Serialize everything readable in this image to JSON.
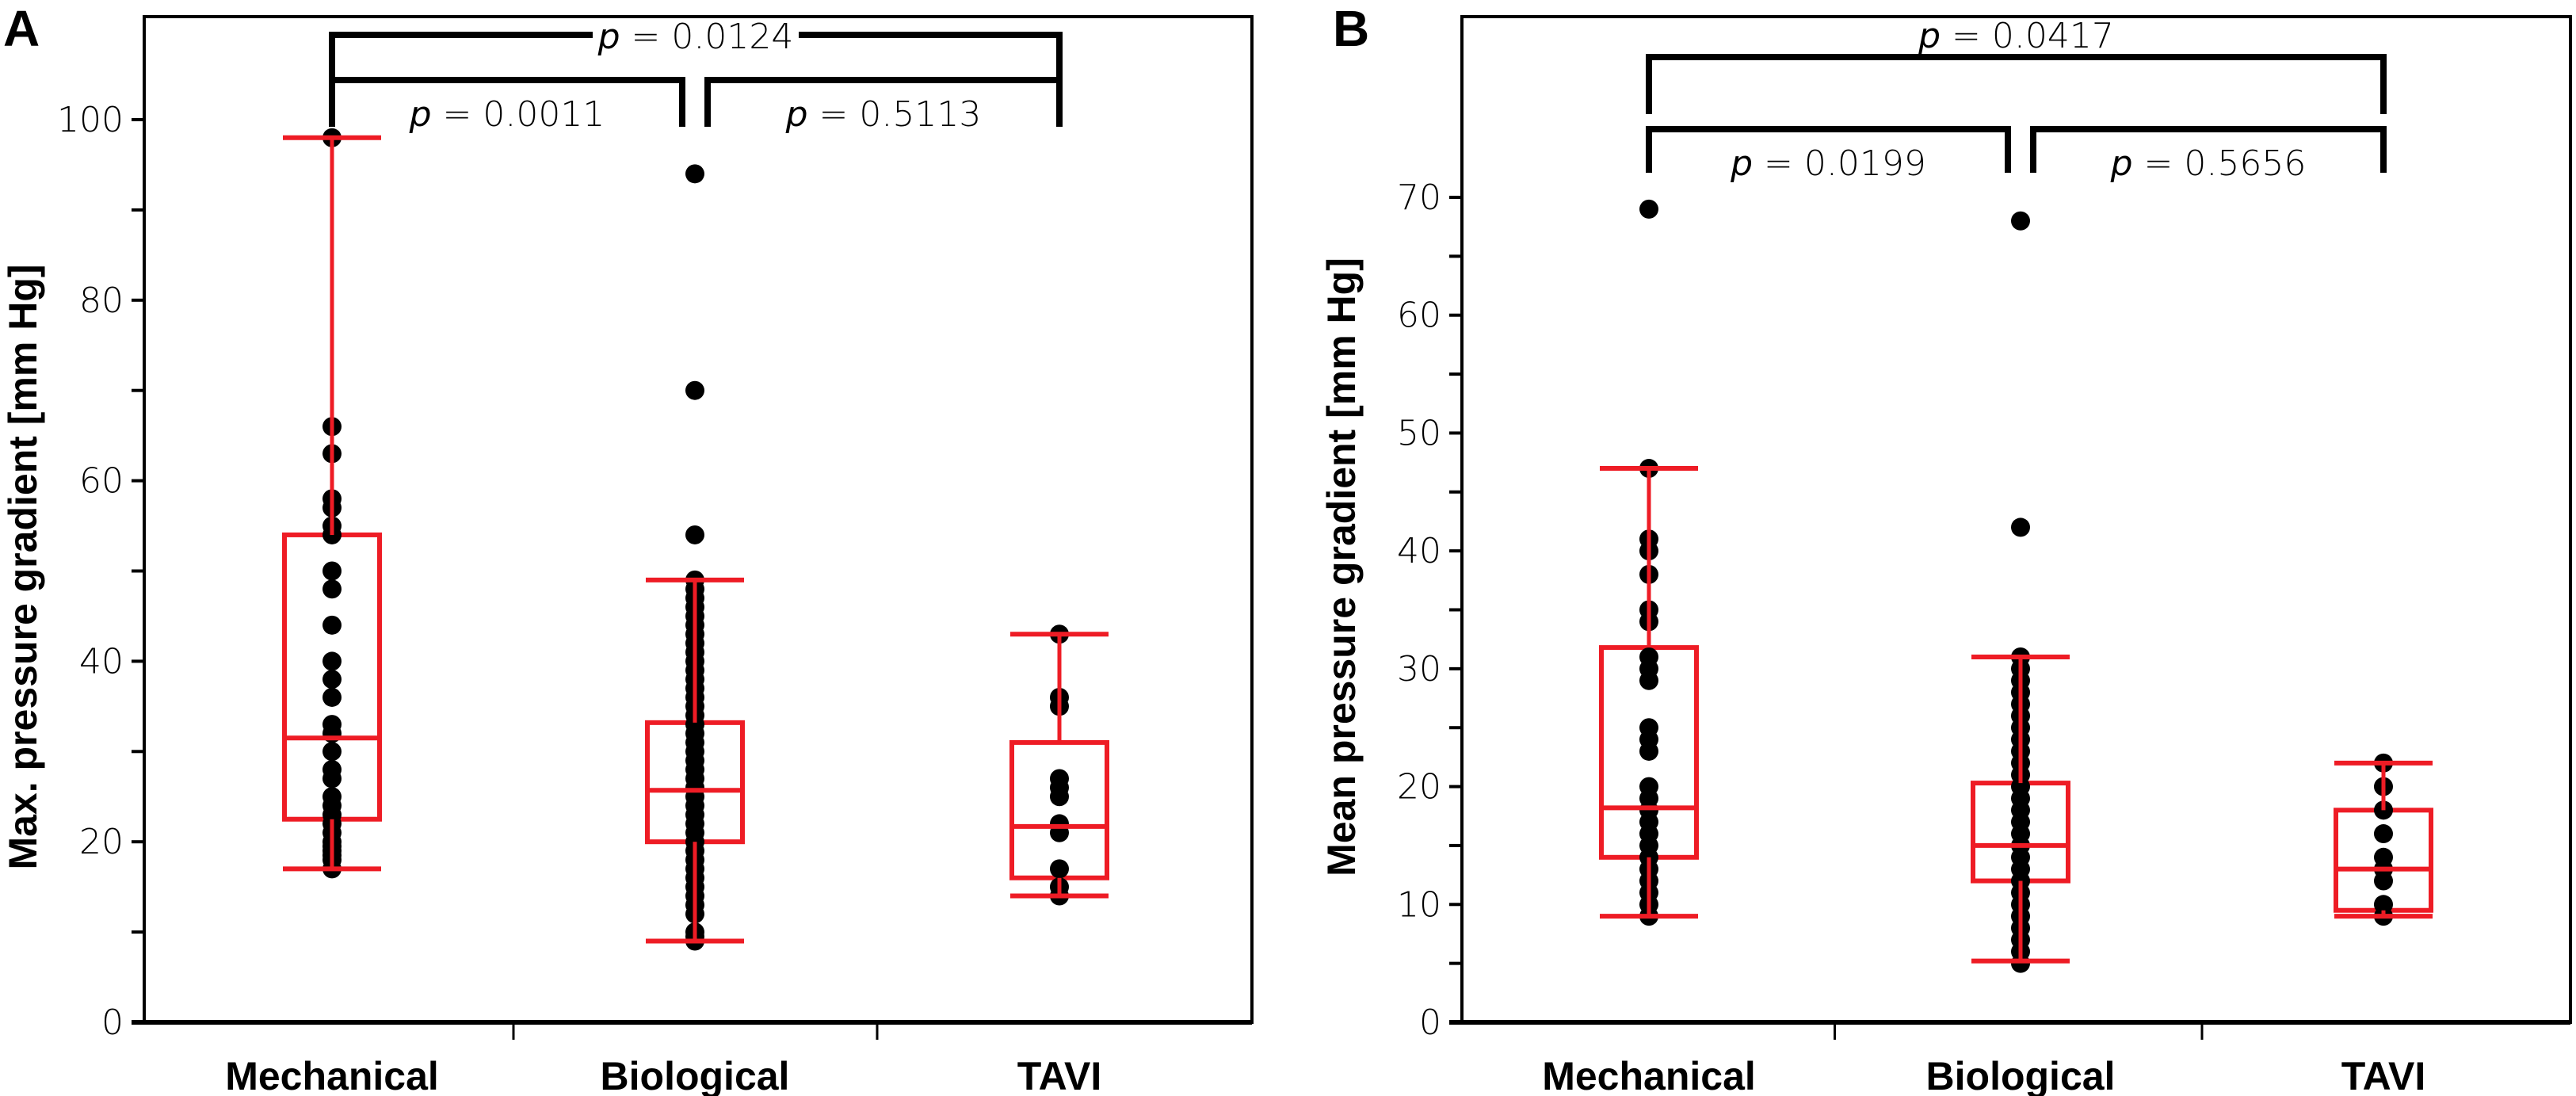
{
  "chart_data": [
    {
      "type": "box",
      "panel": "A",
      "title": "",
      "xlabel": "",
      "ylabel": "Max. pressure gradient [mm Hg]",
      "categories": [
        "Mechanical",
        "Biological",
        "TAVI"
      ],
      "ylim": [
        0,
        110
      ],
      "yticks": [
        0,
        20,
        40,
        60,
        80,
        100
      ],
      "yminor_ticks": [
        10,
        30,
        50,
        70,
        90
      ],
      "grid": false,
      "boxes": [
        {
          "name": "Mechanical",
          "whisker_low": 17,
          "q1": 22.5,
          "median": 31.5,
          "q3": 54,
          "whisker_high": 98,
          "points": [
            98,
            66,
            63,
            58,
            57,
            55,
            54,
            50,
            48,
            44,
            40,
            38,
            36,
            33,
            32,
            30,
            28,
            27,
            25,
            24,
            23,
            22,
            21,
            20,
            19.5,
            19,
            18.5,
            18,
            17
          ]
        },
        {
          "name": "Biological",
          "whisker_low": 9,
          "q1": 20,
          "median": 25.7,
          "q3": 33.2,
          "whisker_high": 49,
          "points": [
            94,
            70,
            54,
            49,
            48,
            47,
            46,
            45,
            44,
            43,
            42,
            41,
            40,
            39,
            38,
            37,
            36,
            35,
            34,
            33,
            32,
            31,
            30,
            29,
            28,
            27,
            26,
            25,
            24,
            23,
            22,
            21,
            20,
            19,
            18,
            17,
            16,
            15,
            14,
            13,
            12,
            10,
            9.5,
            9
          ]
        },
        {
          "name": "TAVI",
          "whisker_low": 14,
          "q1": 16,
          "median": 21.7,
          "q3": 31,
          "whisker_high": 43,
          "points": [
            43,
            36,
            35,
            27,
            26,
            25,
            22,
            21,
            17,
            15,
            14
          ]
        }
      ],
      "comparisons": [
        {
          "from": "Mechanical",
          "to": "Biological",
          "label": "= 0.0011"
        },
        {
          "from": "Biological",
          "to": "TAVI",
          "label": "= 0.5113"
        },
        {
          "from": "Mechanical",
          "to": "TAVI",
          "label": "= 0.0124"
        }
      ]
    },
    {
      "type": "box",
      "panel": "B",
      "title": "",
      "xlabel": "",
      "ylabel": "Mean pressure gradient [mm Hg]",
      "categories": [
        "Mechanical",
        "Biological",
        "TAVI"
      ],
      "ylim": [
        0,
        85
      ],
      "yticks": [
        0,
        10,
        20,
        30,
        40,
        50,
        60,
        70
      ],
      "yminor_ticks": [
        5,
        15,
        25,
        35,
        45,
        55,
        65
      ],
      "grid": false,
      "boxes": [
        {
          "name": "Mechanical",
          "whisker_low": 9,
          "q1": 14,
          "median": 18.2,
          "q3": 31.8,
          "whisker_high": 47,
          "points": [
            69,
            47,
            41,
            40,
            38,
            35,
            34,
            31,
            30,
            29,
            25,
            24,
            23,
            20,
            19,
            18,
            17,
            16,
            15,
            14,
            13,
            12,
            11,
            10,
            9
          ]
        },
        {
          "name": "Biological",
          "whisker_low": 5.2,
          "q1": 12,
          "median": 15,
          "q3": 20.3,
          "whisker_high": 31,
          "points": [
            68,
            42,
            31,
            30,
            29,
            28,
            27,
            26,
            25,
            24,
            23,
            22,
            21,
            20,
            19,
            18,
            17,
            16,
            15,
            14,
            13,
            12,
            11,
            10,
            9,
            8,
            7,
            6,
            5
          ]
        },
        {
          "name": "TAVI",
          "whisker_low": 9,
          "q1": 9.5,
          "median": 13,
          "q3": 18,
          "whisker_high": 22,
          "points": [
            22,
            20,
            18,
            16,
            14,
            13,
            12,
            10,
            9
          ]
        }
      ],
      "comparisons": [
        {
          "from": "Mechanical",
          "to": "Biological",
          "label": "= 0.0199"
        },
        {
          "from": "Biological",
          "to": "TAVI",
          "label": "= 0.5656"
        },
        {
          "from": "Mechanical",
          "to": "TAVI",
          "label": "= 0.0417"
        }
      ]
    }
  ],
  "colors": {
    "box": "#ee1c25",
    "points": "#000000",
    "axis": "#000000"
  },
  "p_symbol": "p"
}
